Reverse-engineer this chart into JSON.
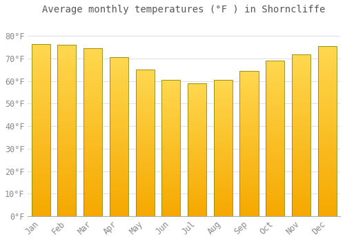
{
  "title": "Average monthly temperatures (°F ) in Shorncliffe",
  "months": [
    "Jan",
    "Feb",
    "Mar",
    "Apr",
    "May",
    "Jun",
    "Jul",
    "Aug",
    "Sep",
    "Oct",
    "Nov",
    "Dec"
  ],
  "values": [
    76.5,
    76.0,
    74.5,
    70.5,
    65.0,
    60.5,
    59.0,
    60.5,
    64.5,
    69.0,
    72.0,
    75.5
  ],
  "bar_color_bottom": "#F5A800",
  "bar_color_top": "#FFD850",
  "bar_edge_color": "#888800",
  "background_color": "#FFFFFF",
  "grid_color": "#E0E0E0",
  "ylim": [
    0,
    88
  ],
  "yticks": [
    0,
    10,
    20,
    30,
    40,
    50,
    60,
    70,
    80
  ],
  "ytick_labels": [
    "0°F",
    "10°F",
    "20°F",
    "30°F",
    "40°F",
    "50°F",
    "60°F",
    "70°F",
    "80°F"
  ],
  "title_fontsize": 10,
  "tick_fontsize": 8.5,
  "tick_color": "#888888",
  "bar_width": 0.72,
  "n_gradient_steps": 50
}
